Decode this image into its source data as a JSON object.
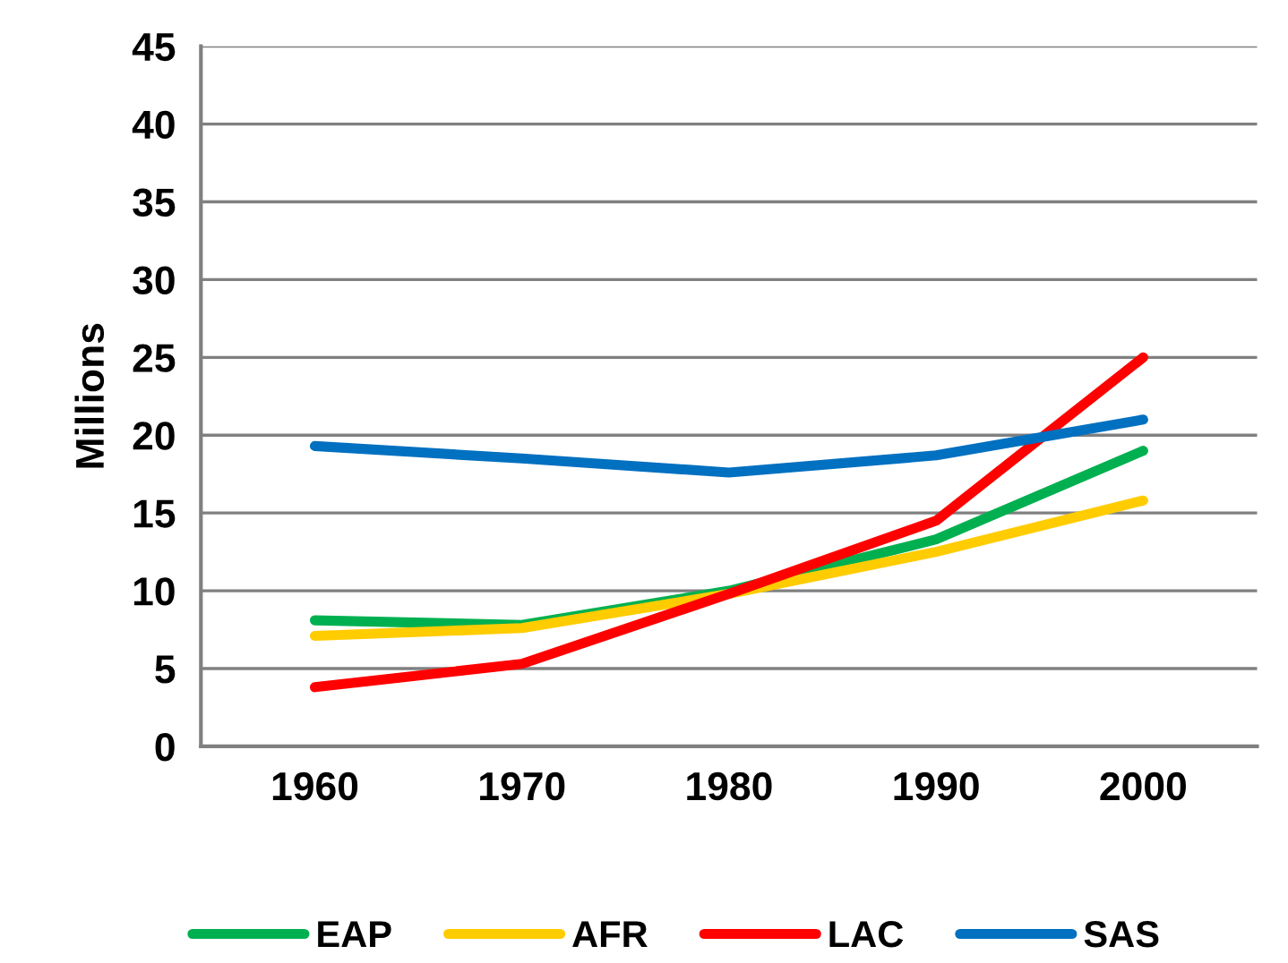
{
  "chart_data": {
    "type": "line",
    "ylabel": "Millions",
    "categories": [
      "1960",
      "1970",
      "1980",
      "1990",
      "2000"
    ],
    "series": [
      {
        "name": "EAP",
        "color": "#00b050",
        "values": [
          8.1,
          7.8,
          10,
          13.3,
          19
        ]
      },
      {
        "name": "AFR",
        "color": "#ffcc00",
        "values": [
          7.1,
          7.6,
          9.8,
          12.5,
          15.8
        ]
      },
      {
        "name": "LAC",
        "color": "#ff0000",
        "values": [
          3.8,
          5.3,
          9.8,
          14.5,
          25
        ]
      },
      {
        "name": "SAS",
        "color": "#0070c0",
        "values": [
          19.3,
          18.5,
          17.6,
          18.7,
          21
        ]
      }
    ],
    "ylim": [
      0,
      45
    ],
    "yticks": [
      0,
      5,
      10,
      15,
      20,
      25,
      30,
      35,
      40,
      45
    ],
    "grid": "y",
    "legend": "bottom",
    "marker": "none",
    "line_style": "solid"
  }
}
